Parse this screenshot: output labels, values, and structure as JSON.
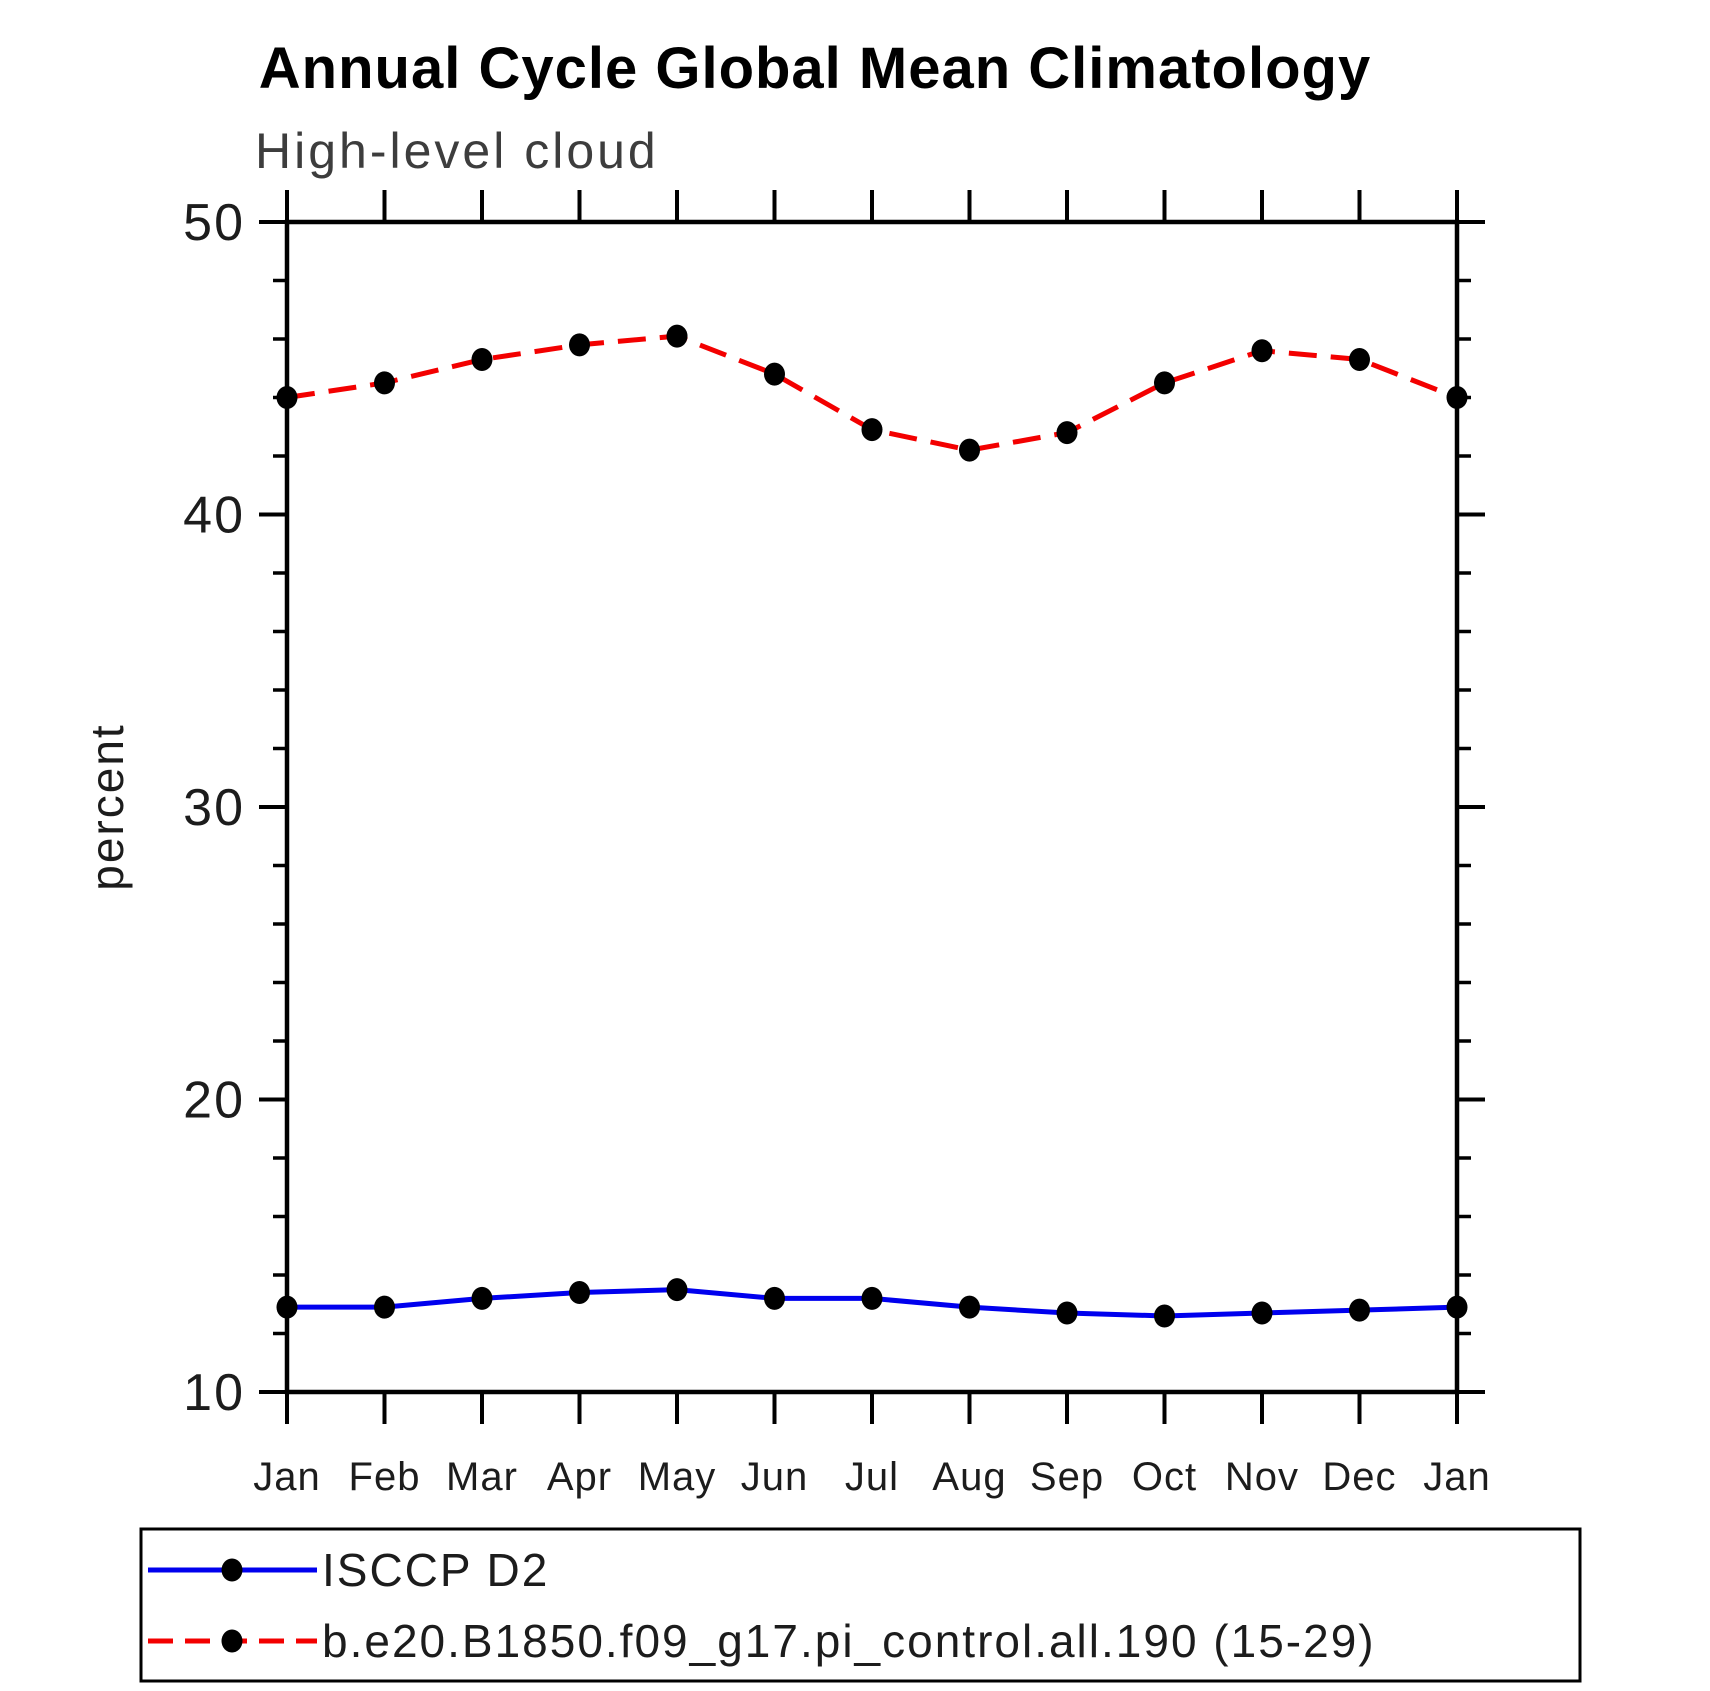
{
  "title": "Annual Cycle Global Mean Climatology",
  "chart_data": {
    "type": "line",
    "title": "High-level cloud",
    "xlabel": "",
    "ylabel": "percent",
    "ylim": [
      10,
      50
    ],
    "y_major_ticks": [
      10,
      20,
      30,
      40,
      50
    ],
    "y_minor_step": 2,
    "grid": false,
    "legend_position": "bottom-left-box",
    "categories": [
      "Jan",
      "Feb",
      "Mar",
      "Apr",
      "May",
      "Jun",
      "Jul",
      "Aug",
      "Sep",
      "Oct",
      "Nov",
      "Dec",
      "Jan"
    ],
    "series": [
      {
        "name": "ISCCP D2",
        "line_style": "solid",
        "line_color": "#0000ee",
        "marker": "filled-circle",
        "marker_color": "#000000",
        "values": [
          12.9,
          12.9,
          13.2,
          13.4,
          13.5,
          13.2,
          13.2,
          12.9,
          12.7,
          12.6,
          12.7,
          12.8,
          12.9
        ]
      },
      {
        "name": "b.e20.B1850.f09_g17.pi_control.all.190 (15-29)",
        "line_style": "dashed",
        "line_color": "#f30000",
        "marker": "filled-circle",
        "marker_color": "#000000",
        "values": [
          44.0,
          44.5,
          45.3,
          45.8,
          46.1,
          44.8,
          42.9,
          42.2,
          42.8,
          44.5,
          45.6,
          45.3,
          44.0
        ]
      }
    ]
  },
  "colors": {
    "axis": "#000000",
    "tick_label": "#1c1c1c",
    "subtitle": "#3d3d3d"
  }
}
